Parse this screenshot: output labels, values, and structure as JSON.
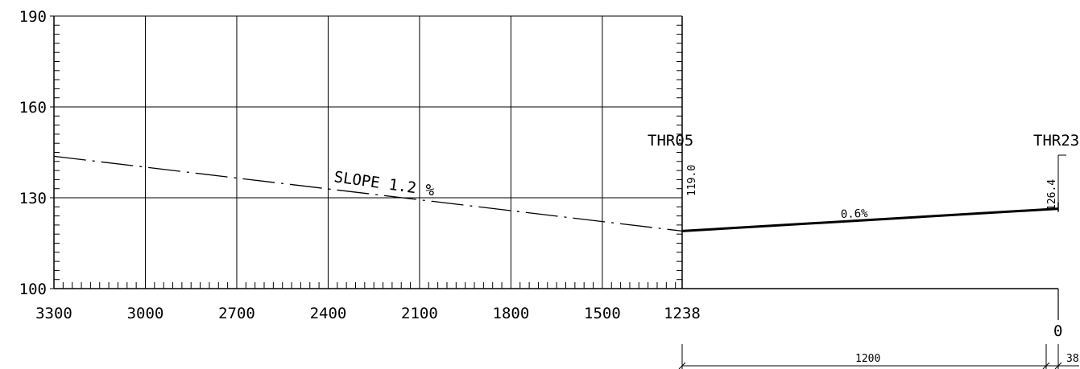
{
  "chart_data": {
    "type": "line",
    "title": "",
    "xlabel": "",
    "ylabel": "",
    "y_ticks": [
      "100",
      "130",
      "160",
      "190"
    ],
    "ylim": [
      100,
      190
    ],
    "x_ticks": [
      "3300",
      "3000",
      "2700",
      "2400",
      "2100",
      "1800",
      "1500",
      "1238"
    ],
    "xlim": [
      3300,
      1238
    ],
    "x_reversed": true,
    "grid": true,
    "series": [
      {
        "style": "dash-dot",
        "x": [
          3300,
          1238
        ],
        "y": [
          143.7,
          119.0
        ]
      },
      {
        "style": "solid",
        "x": [
          1238,
          0
        ],
        "y": [
          119.0,
          126.4
        ]
      }
    ],
    "annotations": {
      "slope_label": "SLOPE 1.2 %",
      "runway_slope_label": "0.6%",
      "thr05_label": "THR05",
      "thr05_elev": "119.0",
      "thr23_label": "THR23",
      "thr23_elev": "126.4",
      "zero_label": "0",
      "dim_runway": "1200",
      "dim_end": "38"
    }
  }
}
